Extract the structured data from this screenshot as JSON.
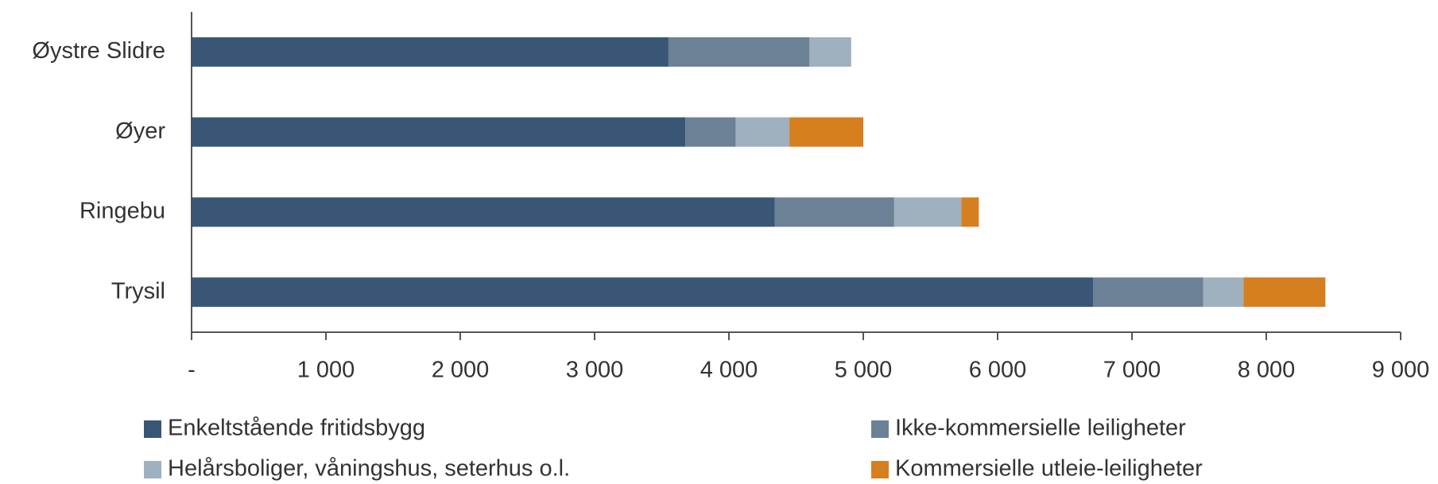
{
  "chart_data": {
    "type": "stacked-bar-horizontal",
    "categories": [
      "Øystre Slidre",
      "Øyer",
      "Ringebu",
      "Trysil"
    ],
    "series": [
      {
        "name": "Enkeltstående fritidsbygg",
        "color": "#3a5676",
        "values": [
          3550,
          3675,
          4340,
          6710
        ]
      },
      {
        "name": "Ikke-kommersielle leiligheter",
        "color": "#6b8196",
        "values": [
          1050,
          375,
          890,
          820
        ]
      },
      {
        "name": "Helårsboliger, våningshus, seterhus o.l.",
        "color": "#9fb0be",
        "values": [
          310,
          400,
          500,
          300
        ]
      },
      {
        "name": "Kommersielle utleie-leiligheter",
        "color": "#d67f1f",
        "values": [
          0,
          550,
          130,
          610
        ]
      }
    ],
    "xlim": [
      0,
      9000
    ],
    "xticks": [
      {
        "value": 0,
        "label": "-"
      },
      {
        "value": 1000,
        "label": "1 000"
      },
      {
        "value": 2000,
        "label": "2 000"
      },
      {
        "value": 3000,
        "label": "3 000"
      },
      {
        "value": 4000,
        "label": "4 000"
      },
      {
        "value": 5000,
        "label": "5 000"
      },
      {
        "value": 6000,
        "label": "6 000"
      },
      {
        "value": 7000,
        "label": "7 000"
      },
      {
        "value": 8000,
        "label": "8 000"
      },
      {
        "value": 9000,
        "label": "9 000"
      }
    ],
    "legend": "bottom"
  }
}
